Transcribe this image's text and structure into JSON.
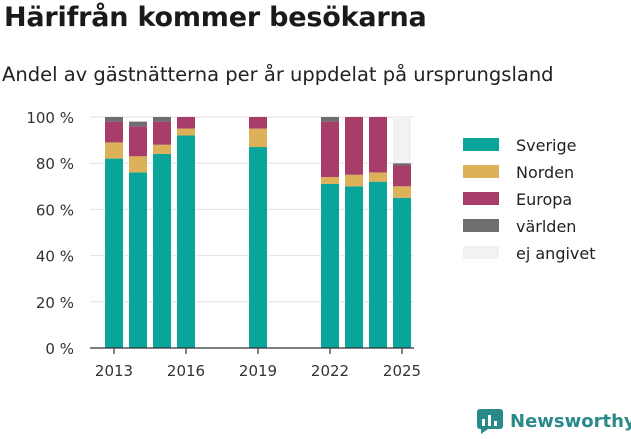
{
  "title": "Härifrån kommer besökarna",
  "subtitle": "Andel av gästnätterna per år uppdelat på ursprungsland",
  "brand": {
    "name": "Newsworthy",
    "color": "#2a8a8a"
  },
  "chart_data": {
    "type": "bar",
    "stacked": true,
    "x": [
      2013,
      2014,
      2015,
      2016,
      2019,
      2022,
      2023,
      2024,
      2025
    ],
    "x_ticks": [
      "2013",
      "2016",
      "2019",
      "2022",
      "2025"
    ],
    "y_ticks": [
      "0 %",
      "20 %",
      "40 %",
      "60 %",
      "80 %",
      "100 %"
    ],
    "ylim": [
      0,
      100
    ],
    "grid": true,
    "legend_position": "right",
    "series": [
      {
        "name": "Sverige",
        "color": "#0aa59a",
        "values": [
          82,
          76,
          84,
          92,
          87,
          71,
          70,
          72,
          65
        ]
      },
      {
        "name": "Norden",
        "color": "#ddb05a",
        "values": [
          7,
          7,
          4,
          3,
          8,
          3,
          5,
          4,
          5
        ]
      },
      {
        "name": "Europa",
        "color": "#a83d6a",
        "values": [
          9,
          13,
          10,
          5,
          5,
          24,
          25,
          24,
          9
        ]
      },
      {
        "name": "världen",
        "color": "#6e6e70",
        "values": [
          2,
          2,
          2,
          0,
          0,
          2,
          0,
          0,
          1
        ]
      },
      {
        "name": "ej angivet",
        "color": "#f3f1f2",
        "values": [
          0,
          0,
          0,
          0,
          0,
          0,
          0,
          0,
          20
        ]
      }
    ]
  }
}
